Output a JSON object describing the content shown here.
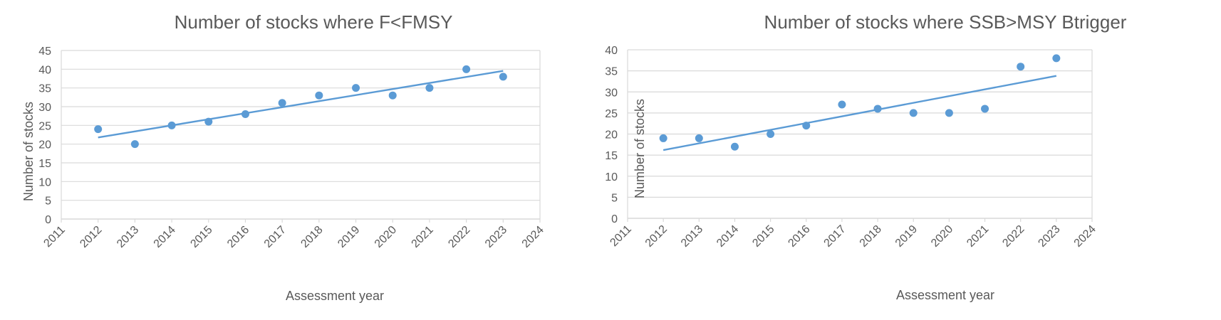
{
  "colors": {
    "series": "#5b9bd5",
    "gridline": "#d9d9d9",
    "axis_line": "#d9d9d9",
    "text": "#595959"
  },
  "chart_data": [
    {
      "type": "scatter",
      "title": "Number of stocks where F<FMSY",
      "xlabel": "Assessment year",
      "ylabel": "Number of stocks",
      "xlim": [
        2011,
        2024
      ],
      "ylim": [
        0,
        45
      ],
      "x_ticks": [
        2011,
        2012,
        2013,
        2014,
        2015,
        2016,
        2017,
        2018,
        2019,
        2020,
        2021,
        2022,
        2023,
        2024
      ],
      "y_ticks": [
        0,
        5,
        10,
        15,
        20,
        25,
        30,
        35,
        40,
        45
      ],
      "grid": "horizontal",
      "legend": "none",
      "trendline": "linear",
      "series": [
        {
          "x": [
            2012,
            2013,
            2014,
            2015,
            2016,
            2017,
            2018,
            2019,
            2020,
            2021,
            2022,
            2023
          ],
          "y": [
            24,
            20,
            25,
            26,
            28,
            31,
            33,
            35,
            33,
            35,
            40,
            38
          ]
        }
      ]
    },
    {
      "type": "scatter",
      "title": "Number of stocks where SSB>MSY Btrigger",
      "xlabel": "Assessment year",
      "ylabel": "Number of stocks",
      "xlim": [
        2011,
        2024
      ],
      "ylim": [
        0,
        40
      ],
      "x_ticks": [
        2011,
        2012,
        2013,
        2014,
        2015,
        2016,
        2017,
        2018,
        2019,
        2020,
        2021,
        2022,
        2023,
        2024
      ],
      "y_ticks": [
        0,
        5,
        10,
        15,
        20,
        25,
        30,
        35,
        40
      ],
      "grid": "horizontal",
      "legend": "none",
      "trendline": "linear",
      "series": [
        {
          "x": [
            2012,
            2013,
            2014,
            2015,
            2016,
            2017,
            2018,
            2019,
            2020,
            2021,
            2022,
            2023
          ],
          "y": [
            19,
            19,
            17,
            20,
            22,
            27,
            26,
            25,
            25,
            26,
            36,
            38
          ]
        }
      ]
    }
  ]
}
